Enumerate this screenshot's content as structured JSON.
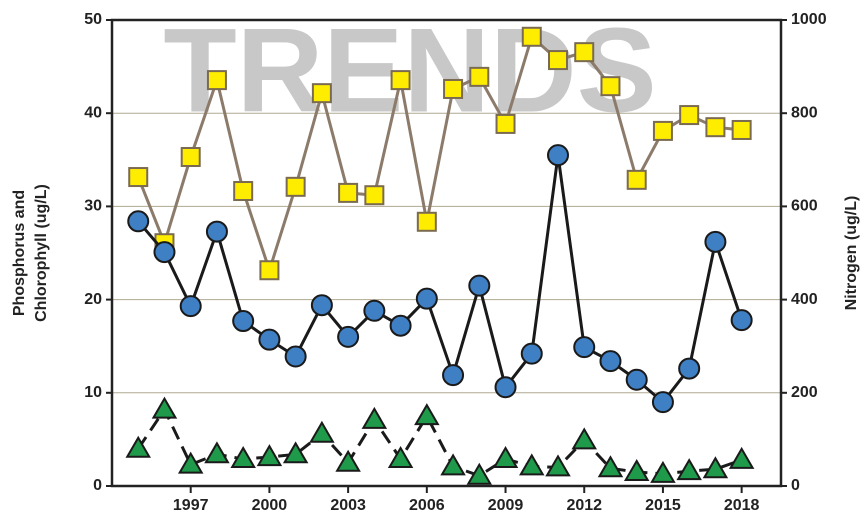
{
  "chart_data": {
    "type": "line",
    "watermark": "TRENDS",
    "ylabel": [
      "Phosphorus and",
      "Chlorophyll (ug/L)"
    ],
    "y2label": "Nitrogen (ug/L)",
    "x": [
      1995,
      1996,
      1997,
      1998,
      1999,
      2000,
      2001,
      2002,
      2003,
      2004,
      2005,
      2006,
      2007,
      2008,
      2009,
      2010,
      2011,
      2012,
      2013,
      2014,
      2015,
      2016,
      2017,
      2018
    ],
    "xlim": [
      1994,
      2019.5
    ],
    "xticks": [
      1997,
      2000,
      2003,
      2006,
      2009,
      2012,
      2015,
      2018
    ],
    "ylim": [
      0,
      50
    ],
    "yticks": [
      0,
      10,
      20,
      30,
      40,
      50
    ],
    "y2lim": [
      0,
      1000
    ],
    "y2ticks": [
      0,
      200,
      400,
      600,
      800,
      1000
    ],
    "grid": true,
    "series": [
      {
        "axis": "y2",
        "marker": "square",
        "color": "#ffed00",
        "line_color": "#8c7b6a",
        "dashed": false,
        "values": [
          663,
          521,
          706,
          871,
          633,
          463,
          642,
          843,
          629,
          624,
          871,
          567,
          852,
          878,
          777,
          964,
          914,
          931,
          858,
          657,
          762,
          796,
          770,
          764
        ]
      },
      {
        "axis": "y",
        "marker": "circle",
        "color": "#3f7fc4",
        "line_color": "#1a1a1a",
        "dashed": false,
        "values": [
          28.4,
          25.1,
          19.3,
          27.3,
          17.7,
          15.7,
          13.9,
          19.4,
          16.0,
          18.8,
          17.2,
          20.1,
          11.9,
          21.5,
          10.6,
          14.2,
          35.5,
          14.9,
          13.4,
          11.4,
          9.0,
          12.6,
          26.2,
          17.8
        ]
      },
      {
        "axis": "y",
        "marker": "triangle",
        "color": "#1f9a4a",
        "line_color": "#1a1a1a",
        "dashed": true,
        "values": [
          4.0,
          8.2,
          2.3,
          3.4,
          2.9,
          3.1,
          3.4,
          5.6,
          2.5,
          7.1,
          2.9,
          7.5,
          2.1,
          1.1,
          2.9,
          2.1,
          2.0,
          4.9,
          1.9,
          1.5,
          1.3,
          1.6,
          1.8,
          2.8
        ]
      }
    ]
  }
}
